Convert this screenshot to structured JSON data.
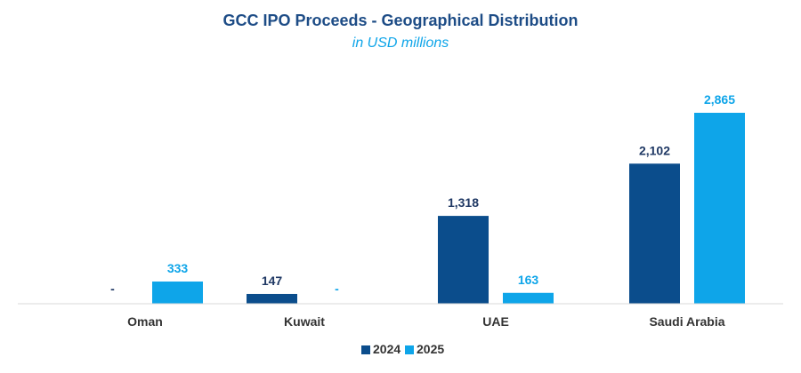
{
  "chart_data": {
    "type": "bar",
    "title": "GCC IPO Proceeds - Geographical Distribution",
    "subtitle": "in USD millions",
    "xlabel": "",
    "ylabel": "",
    "categories": [
      "Oman",
      "Kuwait",
      "UAE",
      "Saudi Arabia"
    ],
    "series": [
      {
        "name": "2024",
        "color": "#0b4d8c",
        "values": [
          null,
          147,
          1318,
          2102
        ],
        "labels": [
          "-",
          "147",
          "1,318",
          "2,102"
        ]
      },
      {
        "name": "2025",
        "color": "#0ea5e9",
        "values": [
          333,
          null,
          163,
          2865
        ],
        "labels": [
          "333",
          "-",
          "163",
          "2,865"
        ]
      }
    ],
    "ylim": [
      0,
      2865
    ],
    "grid": false,
    "legend_position": "bottom-center"
  }
}
